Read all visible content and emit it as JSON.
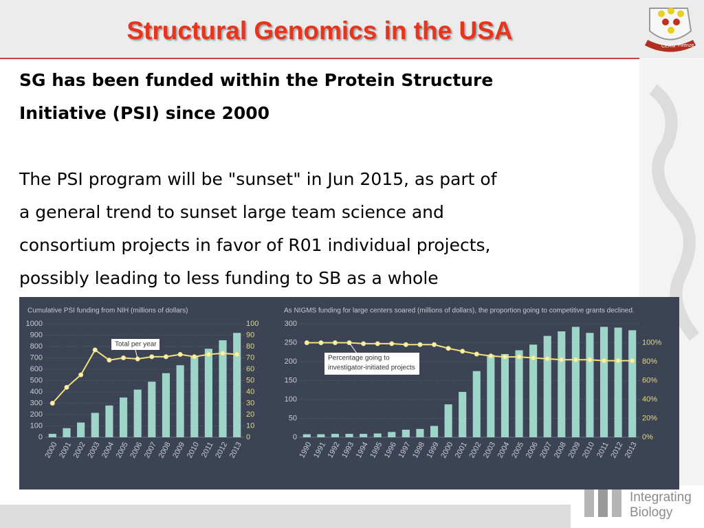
{
  "slide_title": "Structural Genomics in the USA",
  "logo": {
    "left": "CERM",
    "right": "Firenze"
  },
  "heading_lines": [
    "SG has been funded within the Protein Structure",
    "Initiative (PSI) since 2000"
  ],
  "paragraph_lines": [
    "The PSI program will be \"sunset\" in Jun 2015, as part of",
    "a general trend to sunset large team science and",
    "consortium projects in favor of R01 individual projects,",
    "possibly leading to less funding to SB as a whole"
  ],
  "footer_logo": {
    "line1": "Integrating",
    "line2": "Biology"
  },
  "chart_data": [
    {
      "type": "bar_line",
      "title": "Cumulative PSI funding from NIH (millions of dollars)",
      "categories": [
        "2000",
        "2001",
        "2002",
        "2003",
        "2004",
        "2005",
        "2006",
        "2007",
        "2008",
        "2009",
        "2010",
        "2011",
        "2012",
        "2013"
      ],
      "series": [
        {
          "name": "Cumulative PSI funding",
          "color": "#9fd4c8",
          "values": [
            30,
            80,
            130,
            215,
            280,
            350,
            420,
            490,
            565,
            635,
            710,
            780,
            855,
            920
          ]
        },
        {
          "name": "Total per year",
          "color": "#f2e27a",
          "axis": "y2",
          "values": [
            30,
            44,
            55,
            77,
            68,
            70,
            69,
            71,
            71,
            73,
            71,
            73,
            74,
            73
          ]
        }
      ],
      "annotation_lines": [
        "Total per year"
      ],
      "ylim": [
        0,
        1000
      ],
      "yticks": [
        0,
        100,
        200,
        300,
        400,
        500,
        600,
        700,
        800,
        900,
        1000
      ],
      "y2lim": [
        0,
        100
      ],
      "y2ticks": [
        0,
        10,
        20,
        30,
        40,
        50,
        60,
        70,
        80,
        90,
        100
      ],
      "grid": true
    },
    {
      "type": "bar_line",
      "title": "As NIGMS funding for large centers soared (millions of dollars), the proportion going to competitive grants declined.",
      "categories": [
        "1990",
        "1991",
        "1992",
        "1993",
        "1994",
        "1995",
        "1996",
        "1997",
        "1998",
        "1999",
        "2000",
        "2001",
        "2002",
        "2003",
        "2004",
        "2005",
        "2006",
        "2007",
        "2008",
        "2009",
        "2010",
        "2011",
        "2012",
        "2013"
      ],
      "series": [
        {
          "name": "NIGMS funding for large centers",
          "color": "#9fd4c8",
          "values": [
            8,
            8,
            9,
            9,
            9,
            10,
            14,
            20,
            22,
            30,
            87,
            120,
            175,
            218,
            220,
            230,
            245,
            268,
            280,
            292,
            276,
            292,
            290,
            283
          ]
        },
        {
          "name": "Percentage going to investigator-initiated projects",
          "color": "#f2e27a",
          "axis": "y2",
          "values": [
            100,
            100,
            100,
            100,
            99,
            99,
            99,
            98,
            98,
            98,
            94,
            91,
            88,
            86,
            85,
            85,
            84,
            83,
            82,
            82,
            82,
            81,
            81,
            81
          ]
        }
      ],
      "annotation_lines": [
        "Percentage going to",
        "investigator-initiated projects"
      ],
      "ylim": [
        0,
        300
      ],
      "yticks": [
        0,
        50,
        100,
        150,
        200,
        250,
        300
      ],
      "y2lim": [
        0,
        120
      ],
      "y2ticks": [
        {
          "value": 0,
          "label": "0%"
        },
        {
          "value": 20,
          "label": "20%"
        },
        {
          "value": 40,
          "label": "40%"
        },
        {
          "value": 60,
          "label": "60%"
        },
        {
          "value": 80,
          "label": "80%"
        },
        {
          "value": 100,
          "label": "100%"
        }
      ],
      "grid": true
    }
  ]
}
